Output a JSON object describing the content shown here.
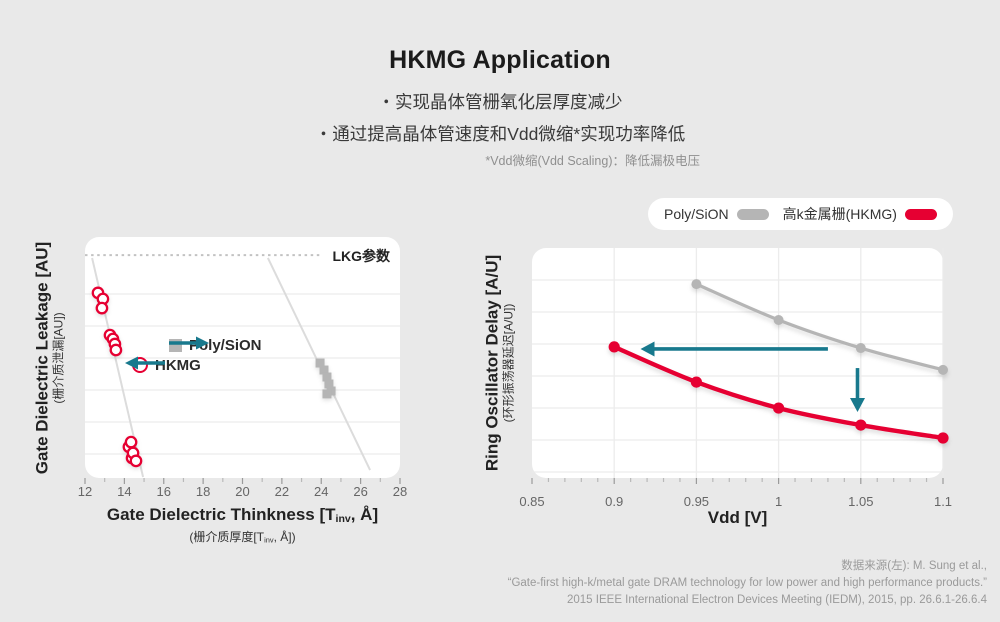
{
  "slide": {
    "title": "HKMG Application",
    "bullets": [
      "・实现晶体管栅氧化层厚度减少",
      "・通过提高晶体管速度和Vdd微缩*实现功率降低"
    ],
    "footnote": "*Vdd微缩(Vdd Scaling)：降低漏极电压"
  },
  "colors": {
    "red": "#e60032",
    "gray": "#b5b5b5",
    "teal": "#18798d",
    "trend": "#dcdcdc",
    "gridline": "#ececec",
    "dotted": "#c2c2c2"
  },
  "legend": {
    "items": [
      {
        "label": "Poly/SiON",
        "color": "#b5b5b5"
      },
      {
        "label": "高k金属栅(HKMG)",
        "color": "#e60032"
      }
    ]
  },
  "chart_data": [
    {
      "type": "scatter",
      "xlabel_parts": {
        "pre": "Gate Dielectric Thinkness [T",
        "sub": "inv",
        "post": ", Å]"
      },
      "xlabel_zh_parts": {
        "pre": "(栅介质厚度[T",
        "sub": "inv",
        "post": ", Å])"
      },
      "ylabel": "Gate Dielectric Leakage [AU]",
      "ylabel_zh": "(栅介质泄漏[AU])",
      "xlim": [
        12,
        28
      ],
      "x_ticks": [
        12,
        14,
        16,
        18,
        20,
        22,
        24,
        26,
        28
      ],
      "y_units": "arbitrary units, unlabeled axis; y values given as fraction of axis height (0=bottom, 1=top)",
      "grid": "horizontal only",
      "series": [
        {
          "name": "HKMG",
          "marker": "circle",
          "points": [
            [
              12.66,
              0.768
            ],
            [
              12.91,
              0.743
            ],
            [
              12.86,
              0.705
            ],
            [
              13.27,
              0.593
            ],
            [
              13.42,
              0.577
            ],
            [
              13.52,
              0.556
            ],
            [
              13.57,
              0.531
            ],
            [
              14.23,
              0.129
            ],
            [
              14.34,
              0.149
            ],
            [
              14.39,
              0.083
            ],
            [
              14.44,
              0.104
            ],
            [
              14.59,
              0.071
            ]
          ]
        },
        {
          "name": "Poly/SiON",
          "marker": "square",
          "points": [
            [
              23.94,
              0.477
            ],
            [
              24.14,
              0.448
            ],
            [
              24.29,
              0.419
            ],
            [
              24.39,
              0.39
            ],
            [
              24.5,
              0.361
            ],
            [
              24.29,
              0.349
            ]
          ]
        }
      ],
      "trend_lines": [
        {
          "from": [
            12.36,
            0.913
          ],
          "to": [
            14.95,
            0.004
          ]
        },
        {
          "from": [
            21.29,
            0.913
          ],
          "to": [
            26.48,
            0.033
          ]
        }
      ],
      "threshold_line": {
        "label": "LKG参数",
        "y": 0.925,
        "x_from": 12,
        "x_to": 23.9,
        "style": "dotted"
      },
      "inplot_legend": [
        {
          "label": "Poly/SiON",
          "arrow": "right"
        },
        {
          "label": "HKMG",
          "arrow": "left"
        }
      ]
    },
    {
      "type": "line",
      "xlabel": "Vdd [V]",
      "ylabel": "Ring Oscillator Delay [A/U]",
      "ylabel_zh": "(环形振荡器延迟[A/U])",
      "xlim": [
        0.85,
        1.1
      ],
      "x_ticks": [
        {
          "v": 0.85,
          "label": "0.85"
        },
        {
          "v": 0.9,
          "label": "0.9"
        },
        {
          "v": 0.95,
          "label": "0.95"
        },
        {
          "v": 1,
          "label": "1"
        },
        {
          "v": 1.05,
          "label": "1.05"
        },
        {
          "v": 1.1,
          "label": "1.1"
        }
      ],
      "y_units": "arbitrary units, unlabeled axis; y values given as fraction of axis height (0=bottom, 1=top)",
      "grid": "horizontal and vertical at major ticks",
      "series": [
        {
          "name": "Poly/SiON",
          "x": [
            0.95,
            1.0,
            1.05,
            1.1
          ],
          "y": [
            0.843,
            0.687,
            0.565,
            0.47
          ]
        },
        {
          "name": "高k金属栅(HKMG)",
          "x": [
            0.9,
            0.95,
            1.0,
            1.05,
            1.1
          ],
          "y": [
            0.57,
            0.417,
            0.304,
            0.23,
            0.174
          ]
        }
      ],
      "annotations": [
        {
          "type": "arrow",
          "direction": "left",
          "from": [
            1.03,
            0.561
          ],
          "to": [
            0.916,
            0.561
          ]
        },
        {
          "type": "arrow",
          "direction": "down",
          "from": [
            1.048,
            0.478
          ],
          "to": [
            1.048,
            0.287
          ]
        }
      ]
    }
  ],
  "source": {
    "lines": [
      "数据来源(左): M. Sung et al.,",
      "“Gate-first high-k/metal gate DRAM technology for low power and high performance products.”",
      "2015 IEEE International Electron Devices Meeting (IEDM), 2015, pp. 26.6.1-26.6.4"
    ]
  }
}
